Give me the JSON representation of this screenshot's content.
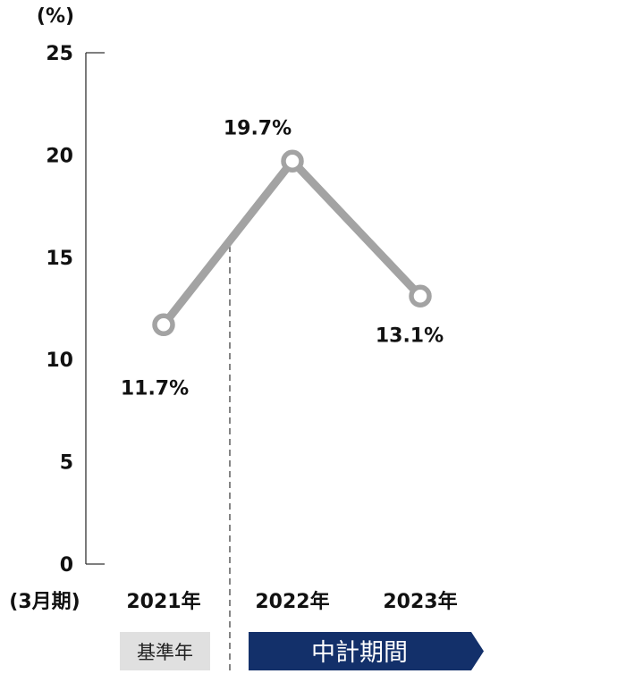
{
  "chart_data": {
    "type": "line",
    "y_unit": "(%)",
    "ylim": [
      0,
      25
    ],
    "yticks": [
      "0",
      "5",
      "10",
      "15",
      "20",
      "25"
    ],
    "x_suffix": "(3月期)",
    "categories": [
      "2021年",
      "2022年",
      "2023年"
    ],
    "series": [
      {
        "values": [
          11.7,
          19.7,
          13.1
        ],
        "labels": [
          "11.7%",
          "19.7%",
          "13.1%"
        ]
      }
    ],
    "grid": false,
    "legend": "none",
    "annotations": {
      "base_year_label": "基準年",
      "plan_period_label": "中計期間"
    },
    "colors": {
      "line": "#a3a3a3",
      "text": "#111111",
      "axis": "#333333",
      "base_box": "#e0e0e0",
      "plan_arrow": "#13306a",
      "plan_text": "#ffffff"
    }
  }
}
